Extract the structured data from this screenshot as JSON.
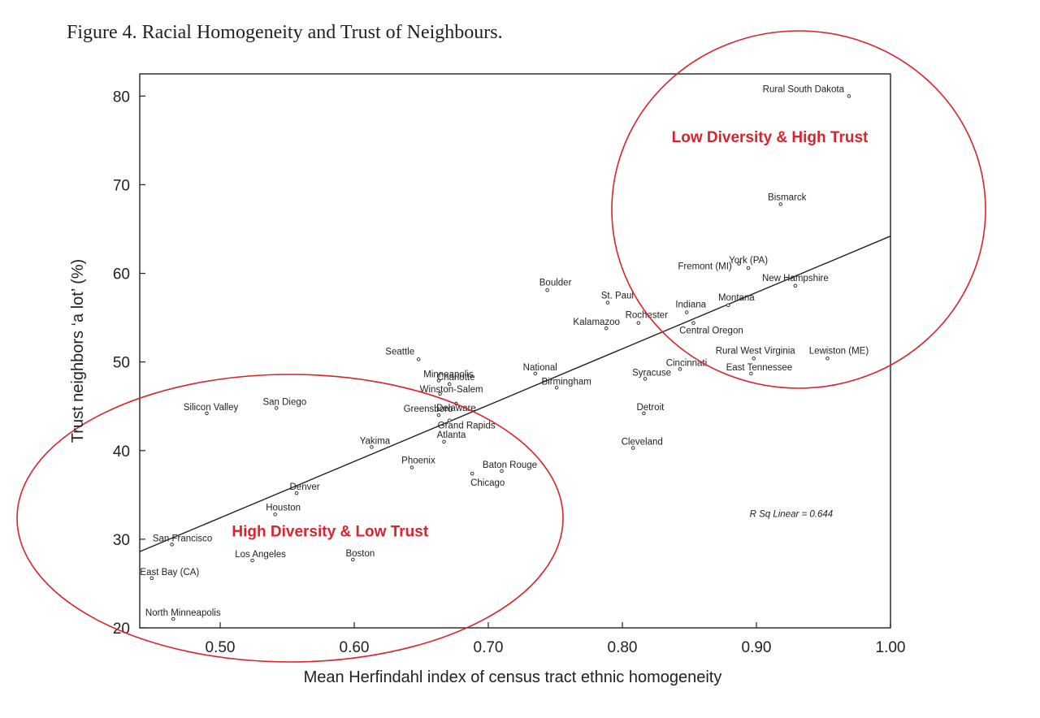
{
  "chart_data": {
    "type": "scatter",
    "title": "Figure 4.  Racial Homogeneity and Trust of Neighbours.",
    "xlabel": "Mean Herfindahl index of census tract ethnic homogeneity",
    "ylabel": "Trust neighbors ‘a lot’ (%)",
    "xlim": [
      0.44,
      1.0
    ],
    "ylim": [
      20,
      82.5
    ],
    "x_ticks": [
      "0.50",
      "0.60",
      "0.70",
      "0.80",
      "0.90",
      "1.00"
    ],
    "y_ticks": [
      "20",
      "30",
      "40",
      "50",
      "60",
      "70",
      "80"
    ],
    "grid": false,
    "points": [
      {
        "label": "Rural South Dakota",
        "x": 0.969,
        "y": 80.0
      },
      {
        "label": "Bismarck",
        "x": 0.918,
        "y": 67.8
      },
      {
        "label": "York (PA)",
        "x": 0.894,
        "y": 60.6
      },
      {
        "label": "Fremont (MI)",
        "x": 0.887,
        "y": 61.1
      },
      {
        "label": "New Hampshire",
        "x": 0.929,
        "y": 58.6
      },
      {
        "label": "Montana",
        "x": 0.879,
        "y": 56.4
      },
      {
        "label": "Indiana",
        "x": 0.848,
        "y": 55.6
      },
      {
        "label": "Rochester",
        "x": 0.812,
        "y": 54.4
      },
      {
        "label": "Central Oregon",
        "x": 0.853,
        "y": 54.4
      },
      {
        "label": "Boulder",
        "x": 0.744,
        "y": 58.1
      },
      {
        "label": "St. Paul",
        "x": 0.789,
        "y": 56.7
      },
      {
        "label": "Kalamazoo",
        "x": 0.788,
        "y": 53.8
      },
      {
        "label": "Rural West Virginia",
        "x": 0.898,
        "y": 50.4
      },
      {
        "label": "Lewiston (ME)",
        "x": 0.953,
        "y": 50.4
      },
      {
        "label": "East Tennessee",
        "x": 0.896,
        "y": 48.7
      },
      {
        "label": "Cincinnati",
        "x": 0.843,
        "y": 49.2
      },
      {
        "label": "Syracuse",
        "x": 0.817,
        "y": 48.1
      },
      {
        "label": "National",
        "x": 0.735,
        "y": 48.7
      },
      {
        "label": "Birmingham",
        "x": 0.751,
        "y": 47.1
      },
      {
        "label": "Seattle",
        "x": 0.648,
        "y": 50.3
      },
      {
        "label": "Minneapolis",
        "x": 0.663,
        "y": 47.9
      },
      {
        "label": "Charlotte",
        "x": 0.671,
        "y": 47.5
      },
      {
        "label": "Winston-Salem",
        "x": 0.664,
        "y": 46.4
      },
      {
        "label": "Delaware",
        "x": 0.676,
        "y": 45.3
      },
      {
        "label": "Greensboro",
        "x": 0.663,
        "y": 44.0
      },
      {
        "label": "Grand Rapids",
        "x": 0.671,
        "y": 43.4
      },
      {
        "label": "Atlanta",
        "x": 0.667,
        "y": 41.0
      },
      {
        "label": "Detroit",
        "x": 0.816,
        "y": 44.2
      },
      {
        "label": "Cleveland",
        "x": 0.808,
        "y": 40.3
      },
      {
        "label": "San Diego",
        "x": 0.542,
        "y": 44.8
      },
      {
        "label": "Silicon Valley",
        "x": 0.49,
        "y": 44.2
      },
      {
        "label": "Yakima",
        "x": 0.613,
        "y": 40.4
      },
      {
        "label": "Phoenix",
        "x": 0.643,
        "y": 38.1
      },
      {
        "label": "Baton Rouge",
        "x": 0.71,
        "y": 37.7
      },
      {
        "label": "Chicago",
        "x": 0.688,
        "y": 37.4
      },
      {
        "label": "Denver",
        "x": 0.557,
        "y": 35.2
      },
      {
        "label": "Houston",
        "x": 0.541,
        "y": 32.8
      },
      {
        "label": "San Francisco",
        "x": 0.464,
        "y": 29.4
      },
      {
        "label": "Los Angeles",
        "x": 0.524,
        "y": 27.6
      },
      {
        "label": "Boston",
        "x": 0.599,
        "y": 27.7
      },
      {
        "label": "East Bay (CA)",
        "x": 0.449,
        "y": 25.6
      },
      {
        "label": "North Minneapolis",
        "x": 0.465,
        "y": 21.0
      }
    ],
    "fit_line": {
      "x": [
        0.44,
        1.0
      ],
      "y": [
        28.6,
        64.2
      ]
    },
    "annotations": [
      {
        "text": "Low Diversity & High Trust",
        "x": 0.91,
        "y": 74.8
      },
      {
        "text": "High Diversity & Low Trust",
        "x": 0.582,
        "y": 30.3
      },
      {
        "text": "R Sq Linear = 0.644",
        "x": 0.926,
        "y": 32.5
      }
    ]
  }
}
